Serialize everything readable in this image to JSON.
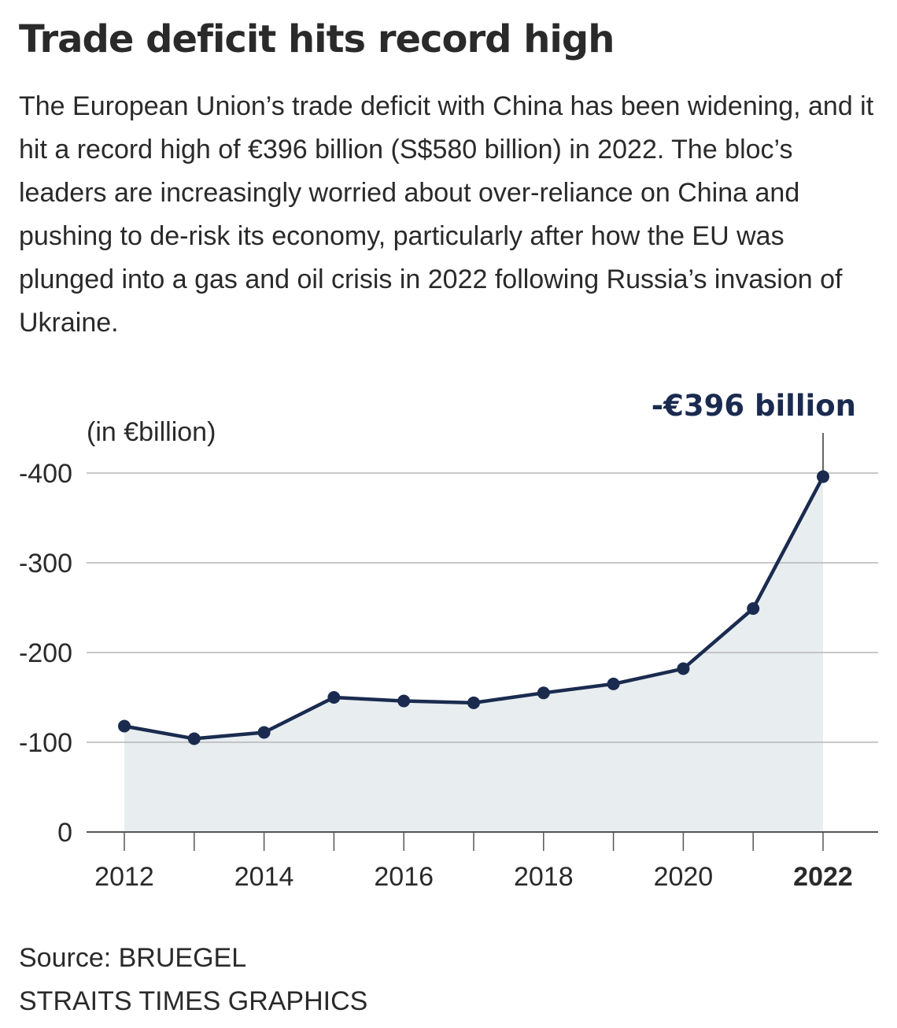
{
  "headline": "Trade deficit hits record high",
  "intro": "The European Union’s trade deficit with China has been widening, and it hit a record high of €396 billion (S$580 billion) in 2022. The bloc’s leaders are increasingly worried about over-reliance on China and pushing to de-risk its economy, particularly after how the EU was plunged into a gas and oil crisis in 2022 following Russia’s invasion of Ukraine.",
  "chart_data": {
    "type": "area",
    "title": "",
    "unit_label": "(in €billion)",
    "xlabel": "",
    "ylabel": "",
    "x": [
      2012,
      2013,
      2014,
      2015,
      2016,
      2017,
      2018,
      2019,
      2020,
      2021,
      2022
    ],
    "series": [
      {
        "name": "EU trade deficit with China",
        "values": [
          -118,
          -104,
          -111,
          -150,
          -146,
          -144,
          -155,
          -165,
          -182,
          -249,
          -396
        ]
      }
    ],
    "ylim": [
      0,
      -400
    ],
    "y_ticks": [
      0,
      -100,
      -200,
      -300,
      -400
    ],
    "y_tick_labels": [
      "0",
      "-100",
      "-200",
      "-300",
      "-400"
    ],
    "x_tick_labels": [
      {
        "year": 2012,
        "label": "2012",
        "bold": false
      },
      {
        "year": 2014,
        "label": "2014",
        "bold": false
      },
      {
        "year": 2016,
        "label": "2016",
        "bold": false
      },
      {
        "year": 2018,
        "label": "2018",
        "bold": false
      },
      {
        "year": 2020,
        "label": "2020",
        "bold": false
      },
      {
        "year": 2022,
        "label": "2022",
        "bold": true
      }
    ],
    "annotation": {
      "year": 2022,
      "text": "-€396 billion"
    },
    "grid": true,
    "colors": {
      "line": "#1a2b4f",
      "fill": "#e8edf0",
      "grid": "#b5b5b5",
      "axis": "#555555",
      "annotation": "#1a2b4f",
      "text": "#2a2a2a"
    }
  },
  "footer": {
    "source": "Source: BRUEGEL",
    "credit": "STRAITS TIMES GRAPHICS"
  }
}
